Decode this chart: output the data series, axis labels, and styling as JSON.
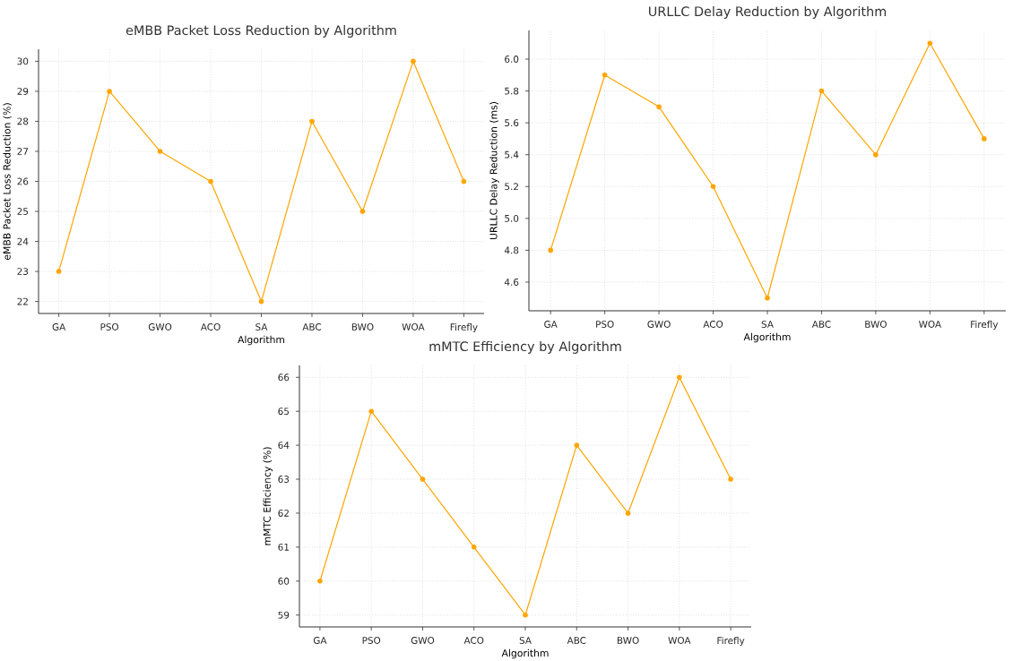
{
  "chart_data": [
    {
      "type": "line",
      "title": "eMBB Packet Loss Reduction by Algorithm",
      "xlabel": "Algorithm",
      "ylabel": "eMBB Packet Loss Reduction (%)",
      "categories": [
        "GA",
        "PSO",
        "GWO",
        "ACO",
        "SA",
        "ABC",
        "BWO",
        "WOA",
        "Firefly"
      ],
      "values": [
        23,
        29,
        27,
        26,
        22,
        28,
        25,
        30,
        26
      ],
      "color": "#ffa500",
      "ylim": [
        21.6,
        30.4
      ],
      "yticks": [
        22,
        23,
        24,
        25,
        26,
        27,
        28,
        29,
        30
      ],
      "grid": true,
      "marker": "circle",
      "line_style": "solid"
    },
    {
      "type": "line",
      "title": "URLLC Delay Reduction by Algorithm",
      "xlabel": "Algorithm",
      "ylabel": "URLLC Delay Reduction (ms)",
      "categories": [
        "GA",
        "PSO",
        "GWO",
        "ACO",
        "SA",
        "ABC",
        "BWO",
        "WOA",
        "Firefly"
      ],
      "values": [
        4.8,
        5.9,
        5.7,
        5.2,
        4.5,
        5.8,
        5.4,
        6.1,
        5.5
      ],
      "color": "#ffa500",
      "ylim": [
        4.42,
        6.18
      ],
      "yticks": [
        {
          "value": 4.6,
          "label": "4.6"
        },
        {
          "value": 4.8,
          "label": "4.8"
        },
        {
          "value": 5,
          "label": "5.0"
        },
        {
          "value": 5.2,
          "label": "5.2"
        },
        {
          "value": 5.4,
          "label": "5.4"
        },
        {
          "value": 5.6,
          "label": "5.6"
        },
        {
          "value": 5.8,
          "label": "5.8"
        },
        {
          "value": 6,
          "label": "6.0"
        }
      ],
      "grid": true,
      "marker": "circle",
      "line_style": "solid"
    },
    {
      "type": "line",
      "title": "mMTC Efficiency by Algorithm",
      "xlabel": "Algorithm",
      "ylabel": "mMTC Efficiency (%)",
      "categories": [
        "GA",
        "PSO",
        "GWO",
        "ACO",
        "SA",
        "ABC",
        "BWO",
        "WOA",
        "Firefly"
      ],
      "values": [
        60,
        65,
        63,
        61,
        59,
        64,
        62,
        66,
        63
      ],
      "color": "#ffa500",
      "ylim": [
        58.65,
        66.35
      ],
      "yticks": [
        59,
        60,
        61,
        62,
        63,
        64,
        65,
        66
      ],
      "grid": true,
      "marker": "circle",
      "line_style": "solid"
    }
  ]
}
